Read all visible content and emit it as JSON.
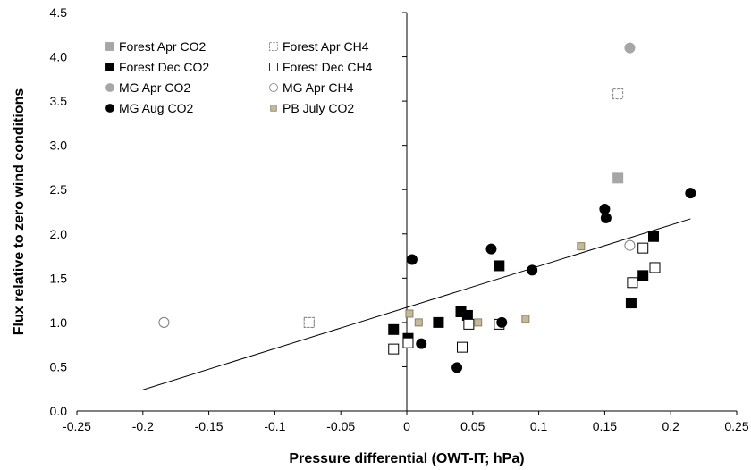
{
  "chart_data": {
    "type": "scatter",
    "title": "",
    "xlabel": "Pressure differential (OWT-IT; hPa)",
    "ylabel": "Flux relative to zero wind conditions",
    "xlim": [
      -0.25,
      0.25
    ],
    "ylim": [
      0,
      4.5
    ],
    "xticks": [
      -0.25,
      -0.2,
      -0.15,
      -0.1,
      -0.05,
      0,
      0.05,
      0.1,
      0.15,
      0.2,
      0.25
    ],
    "xtick_labels": [
      "-0.25",
      "-0.2",
      "-0.15",
      "-0.1",
      "-0.05",
      "0",
      "0.05",
      "0.1",
      "0.15",
      "0.2",
      "0.25"
    ],
    "yticks": [
      0,
      0.5,
      1,
      1.5,
      2,
      2.5,
      3,
      3.5,
      4,
      4.5
    ],
    "ytick_labels": [
      "0.0",
      "0.5",
      "1.0",
      "1.5",
      "2.0",
      "2.5",
      "3.0",
      "3.5",
      "4.0",
      "4.5"
    ],
    "grid": false,
    "legend_position": "top-left",
    "series": [
      {
        "name": "Forest Apr CO2",
        "marker": "square",
        "fill": "#a6a6a6",
        "stroke": "#a6a6a6",
        "x": [
          -0.074,
          0.16
        ],
        "y": [
          1.0,
          2.63
        ]
      },
      {
        "name": "Forest Apr CH4",
        "marker": "square-half",
        "fill": "#ffffff",
        "stroke": "#7f7f7f",
        "x": [
          -0.074,
          0.16
        ],
        "y": [
          1.0,
          3.58
        ]
      },
      {
        "name": "Forest Dec CO2",
        "marker": "square",
        "fill": "#000000",
        "stroke": "#000000",
        "x": [
          -0.01,
          0.001,
          0.024,
          0.041,
          0.046,
          0.07,
          0.17,
          0.179,
          0.187
        ],
        "y": [
          0.92,
          0.82,
          1.0,
          1.12,
          1.08,
          1.64,
          1.22,
          1.53,
          1.97
        ]
      },
      {
        "name": "Forest Dec CH4",
        "marker": "square",
        "fill": "#ffffff",
        "stroke": "#000000",
        "x": [
          -0.01,
          0.001,
          0.042,
          0.047,
          0.07,
          0.171,
          0.179,
          0.188
        ],
        "y": [
          0.7,
          0.77,
          0.72,
          0.98,
          0.98,
          1.45,
          1.84,
          1.62
        ]
      },
      {
        "name": "MG Apr CO2",
        "marker": "circle",
        "fill": "#a6a6a6",
        "stroke": "#a6a6a6",
        "x": [
          -0.184,
          0.169
        ],
        "y": [
          1.0,
          4.1
        ]
      },
      {
        "name": "MG Apr CH4",
        "marker": "circle",
        "fill": "#ffffff",
        "stroke": "#7f7f7f",
        "x": [
          -0.184,
          0.169
        ],
        "y": [
          1.0,
          1.87
        ]
      },
      {
        "name": "MG Aug CO2",
        "marker": "circle",
        "fill": "#000000",
        "stroke": "#000000",
        "x": [
          0.004,
          0.011,
          0.038,
          0.064,
          0.072,
          0.095,
          0.15,
          0.151,
          0.215
        ],
        "y": [
          1.71,
          0.76,
          0.49,
          1.83,
          1.0,
          1.59,
          2.28,
          2.18,
          2.46
        ]
      },
      {
        "name": "PB July CO2",
        "marker": "square-small",
        "fill": "#c4b99a",
        "stroke": "#8c8060",
        "x": [
          0.002,
          0.009,
          0.054,
          0.09,
          0.132
        ],
        "y": [
          1.1,
          1.0,
          1.0,
          1.04,
          1.86
        ]
      }
    ],
    "trendline": {
      "x": [
        -0.2,
        0.215
      ],
      "y": [
        0.24,
        2.17
      ],
      "color": "#000000"
    }
  }
}
